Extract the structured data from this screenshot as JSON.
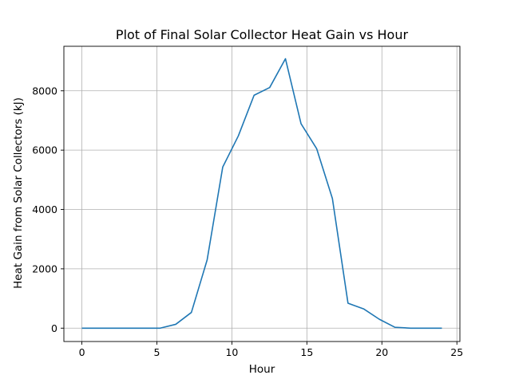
{
  "chart_data": {
    "type": "line",
    "title": "Plot of Final Solar Collector Heat Gain vs Hour",
    "xlabel": "Hour",
    "ylabel": "Heat Gain from Solar Collectors (kJ)",
    "xlim": [
      -1.2,
      25.2
    ],
    "ylim": [
      -450,
      9500
    ],
    "xticks": [
      0,
      5,
      10,
      15,
      20,
      25
    ],
    "yticks": [
      0,
      2000,
      4000,
      6000,
      8000
    ],
    "grid": true,
    "color": "#1f77b4",
    "series": [
      {
        "x": [
          0,
          1.04,
          2.09,
          3.13,
          4.17,
          5.22,
          6.26,
          7.3,
          8.35,
          9.39,
          10.43,
          11.48,
          12.52,
          13.57,
          14.61,
          15.65,
          16.7,
          17.74,
          18.78,
          19.83,
          20.87,
          21.91,
          22.96,
          24
        ],
        "y": [
          0,
          0,
          0,
          0,
          0,
          0,
          130,
          530,
          2300,
          5430,
          6480,
          7850,
          8110,
          9080,
          6890,
          6050,
          4370,
          840,
          650,
          300,
          30,
          0,
          0,
          0
        ]
      }
    ]
  }
}
